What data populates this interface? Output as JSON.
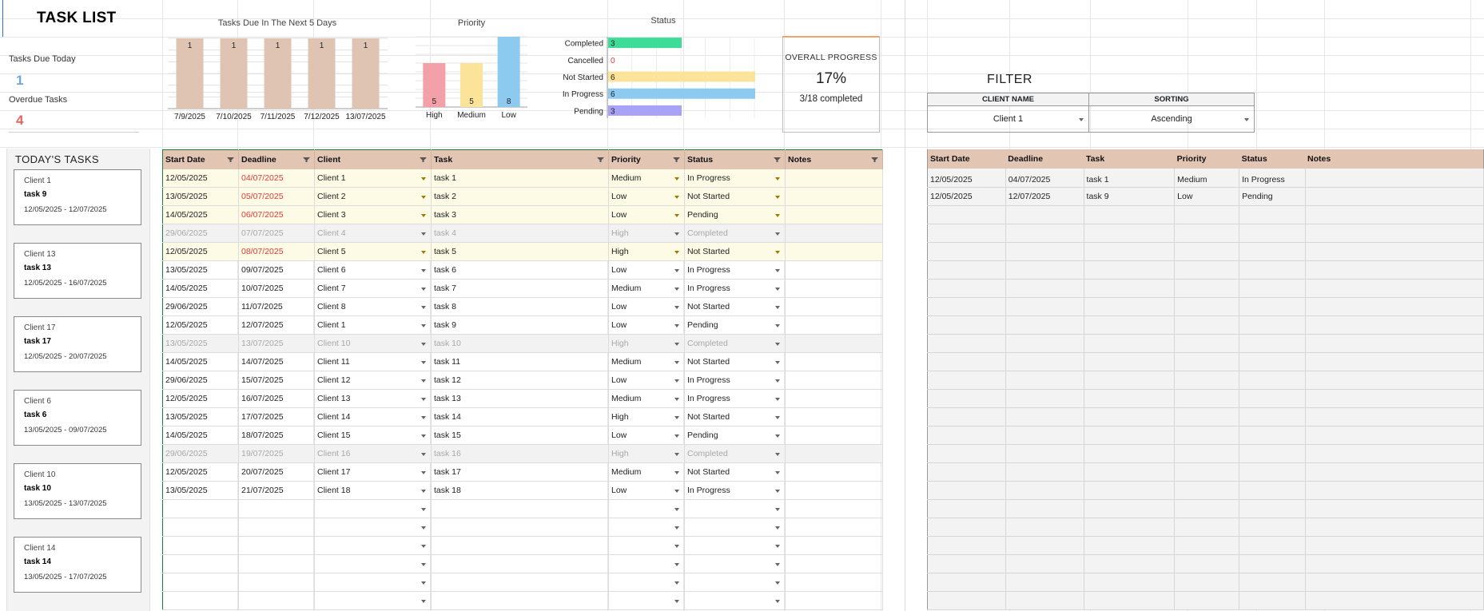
{
  "title": "TASK LIST",
  "kpis": {
    "due_today_label": "Tasks Due Today",
    "due_today_value": "1",
    "overdue_label": "Overdue Tasks",
    "overdue_value": "4",
    "due_today_color": "#6fa8dc",
    "overdue_color": "#e06666"
  },
  "today_tasks": {
    "title": "TODAY'S TASKS",
    "cards": [
      {
        "client": "Client 1",
        "task": "task 9",
        "dates": "12/05/2025 - 12/07/2025"
      },
      {
        "client": "Client 13",
        "task": "task 13",
        "dates": "12/05/2025 - 16/07/2025"
      },
      {
        "client": "Client 17",
        "task": "task 17",
        "dates": "12/05/2025 - 20/07/2025"
      },
      {
        "client": "Client 6",
        "task": "task 6",
        "dates": "13/05/2025 - 09/07/2025"
      },
      {
        "client": "Client 10",
        "task": "task 10",
        "dates": "13/05/2025 - 13/07/2025"
      },
      {
        "client": "Client 14",
        "task": "task 14",
        "dates": "13/05/2025 - 17/07/2025"
      }
    ]
  },
  "chart_data": [
    {
      "type": "bar",
      "title": "Tasks Due In The Next 5 Days",
      "categories": [
        "7/9/2025",
        "7/10/2025",
        "7/11/2025",
        "7/12/2025",
        "13/07/2025"
      ],
      "values": [
        1,
        1,
        1,
        1,
        1
      ],
      "data_labels": [
        "1",
        "1",
        "1",
        "1",
        "1"
      ],
      "color": "#dfc3b3",
      "ylim": [
        0,
        1
      ],
      "grid": true
    },
    {
      "type": "bar",
      "title": "Priority",
      "categories": [
        "High",
        "Medium",
        "Low"
      ],
      "values": [
        5,
        5,
        8
      ],
      "data_labels": [
        "5",
        "5",
        "8"
      ],
      "colors": [
        "#f4a0a8",
        "#fbe49a",
        "#8ccaf0"
      ],
      "ylim": [
        0,
        8
      ],
      "grid": true
    },
    {
      "type": "bar",
      "orientation": "horizontal",
      "title": "Status",
      "categories": [
        "Completed",
        "Cancelled",
        "Not Started",
        "In Progress",
        "Pending"
      ],
      "values": [
        3,
        0,
        6,
        6,
        3
      ],
      "data_labels": [
        "3",
        "0",
        "6",
        "6",
        "3"
      ],
      "colors": [
        "#3ddc97",
        "#e53935",
        "#fbe49a",
        "#8ccaf0",
        "#a9a3f7"
      ],
      "xlim": [
        0,
        6
      ],
      "grid": true
    }
  ],
  "progress": {
    "title": "OVERALL PROGRESS",
    "percent": "17%",
    "count": "3/18 completed"
  },
  "main_table": {
    "headers": [
      "Start Date",
      "Deadline",
      "Client",
      "Task",
      "Priority",
      "Status",
      "Notes"
    ],
    "rows": [
      {
        "start": "12/05/2025",
        "deadline": "04/07/2025",
        "client": "Client 1",
        "task": "task 1",
        "priority": "Medium",
        "status": "In Progress",
        "state": "due"
      },
      {
        "start": "13/05/2025",
        "deadline": "05/07/2025",
        "client": "Client 2",
        "task": "task 2",
        "priority": "Low",
        "status": "Not Started",
        "state": "due"
      },
      {
        "start": "14/05/2025",
        "deadline": "06/07/2025",
        "client": "Client 3",
        "task": "task 3",
        "priority": "Low",
        "status": "Pending",
        "state": "due"
      },
      {
        "start": "29/06/2025",
        "deadline": "07/07/2025",
        "client": "Client 4",
        "task": "task 4",
        "priority": "High",
        "status": "Completed",
        "state": "done"
      },
      {
        "start": "12/05/2025",
        "deadline": "08/07/2025",
        "client": "Client 5",
        "task": "task 5",
        "priority": "High",
        "status": "Not Started",
        "state": "due"
      },
      {
        "start": "13/05/2025",
        "deadline": "09/07/2025",
        "client": "Client 6",
        "task": "task 6",
        "priority": "Low",
        "status": "In Progress",
        "state": ""
      },
      {
        "start": "14/05/2025",
        "deadline": "10/07/2025",
        "client": "Client 7",
        "task": "task 7",
        "priority": "Medium",
        "status": "In Progress",
        "state": ""
      },
      {
        "start": "29/06/2025",
        "deadline": "11/07/2025",
        "client": "Client 8",
        "task": "task 8",
        "priority": "Low",
        "status": "Not Started",
        "state": ""
      },
      {
        "start": "12/05/2025",
        "deadline": "12/07/2025",
        "client": "Client 1",
        "task": "task 9",
        "priority": "Low",
        "status": "Pending",
        "state": ""
      },
      {
        "start": "13/05/2025",
        "deadline": "13/07/2025",
        "client": "Client 10",
        "task": "task 10",
        "priority": "High",
        "status": "Completed",
        "state": "done"
      },
      {
        "start": "14/05/2025",
        "deadline": "14/07/2025",
        "client": "Client 11",
        "task": "task 11",
        "priority": "Medium",
        "status": "Not Started",
        "state": ""
      },
      {
        "start": "29/06/2025",
        "deadline": "15/07/2025",
        "client": "Client 12",
        "task": "task 12",
        "priority": "Low",
        "status": "In Progress",
        "state": ""
      },
      {
        "start": "12/05/2025",
        "deadline": "16/07/2025",
        "client": "Client 13",
        "task": "task 13",
        "priority": "Medium",
        "status": "In Progress",
        "state": ""
      },
      {
        "start": "13/05/2025",
        "deadline": "17/07/2025",
        "client": "Client 14",
        "task": "task 14",
        "priority": "High",
        "status": "Not Started",
        "state": ""
      },
      {
        "start": "14/05/2025",
        "deadline": "18/07/2025",
        "client": "Client 15",
        "task": "task 15",
        "priority": "Low",
        "status": "Pending",
        "state": ""
      },
      {
        "start": "29/06/2025",
        "deadline": "19/07/2025",
        "client": "Client 16",
        "task": "task 16",
        "priority": "High",
        "status": "Completed",
        "state": "done"
      },
      {
        "start": "12/05/2025",
        "deadline": "20/07/2025",
        "client": "Client 17",
        "task": "task 17",
        "priority": "Medium",
        "status": "Not Started",
        "state": ""
      },
      {
        "start": "13/05/2025",
        "deadline": "21/07/2025",
        "client": "Client 18",
        "task": "task 18",
        "priority": "Low",
        "status": "In Progress",
        "state": ""
      }
    ]
  },
  "filter": {
    "title": "FILTER",
    "client_label": "CLIENT NAME",
    "sorting_label": "SORTING",
    "client_value": "Client 1",
    "sorting_value": "Ascending"
  },
  "result_table": {
    "headers": [
      "Start Date",
      "Deadline",
      "Task",
      "Priority",
      "Status",
      "Notes"
    ],
    "rows": [
      {
        "start": "12/05/2025",
        "deadline": "04/07/2025",
        "task": "task 1",
        "priority": "Medium",
        "status": "In Progress"
      },
      {
        "start": "12/05/2025",
        "deadline": "12/07/2025",
        "task": "task 9",
        "priority": "Low",
        "status": "Pending"
      }
    ]
  }
}
